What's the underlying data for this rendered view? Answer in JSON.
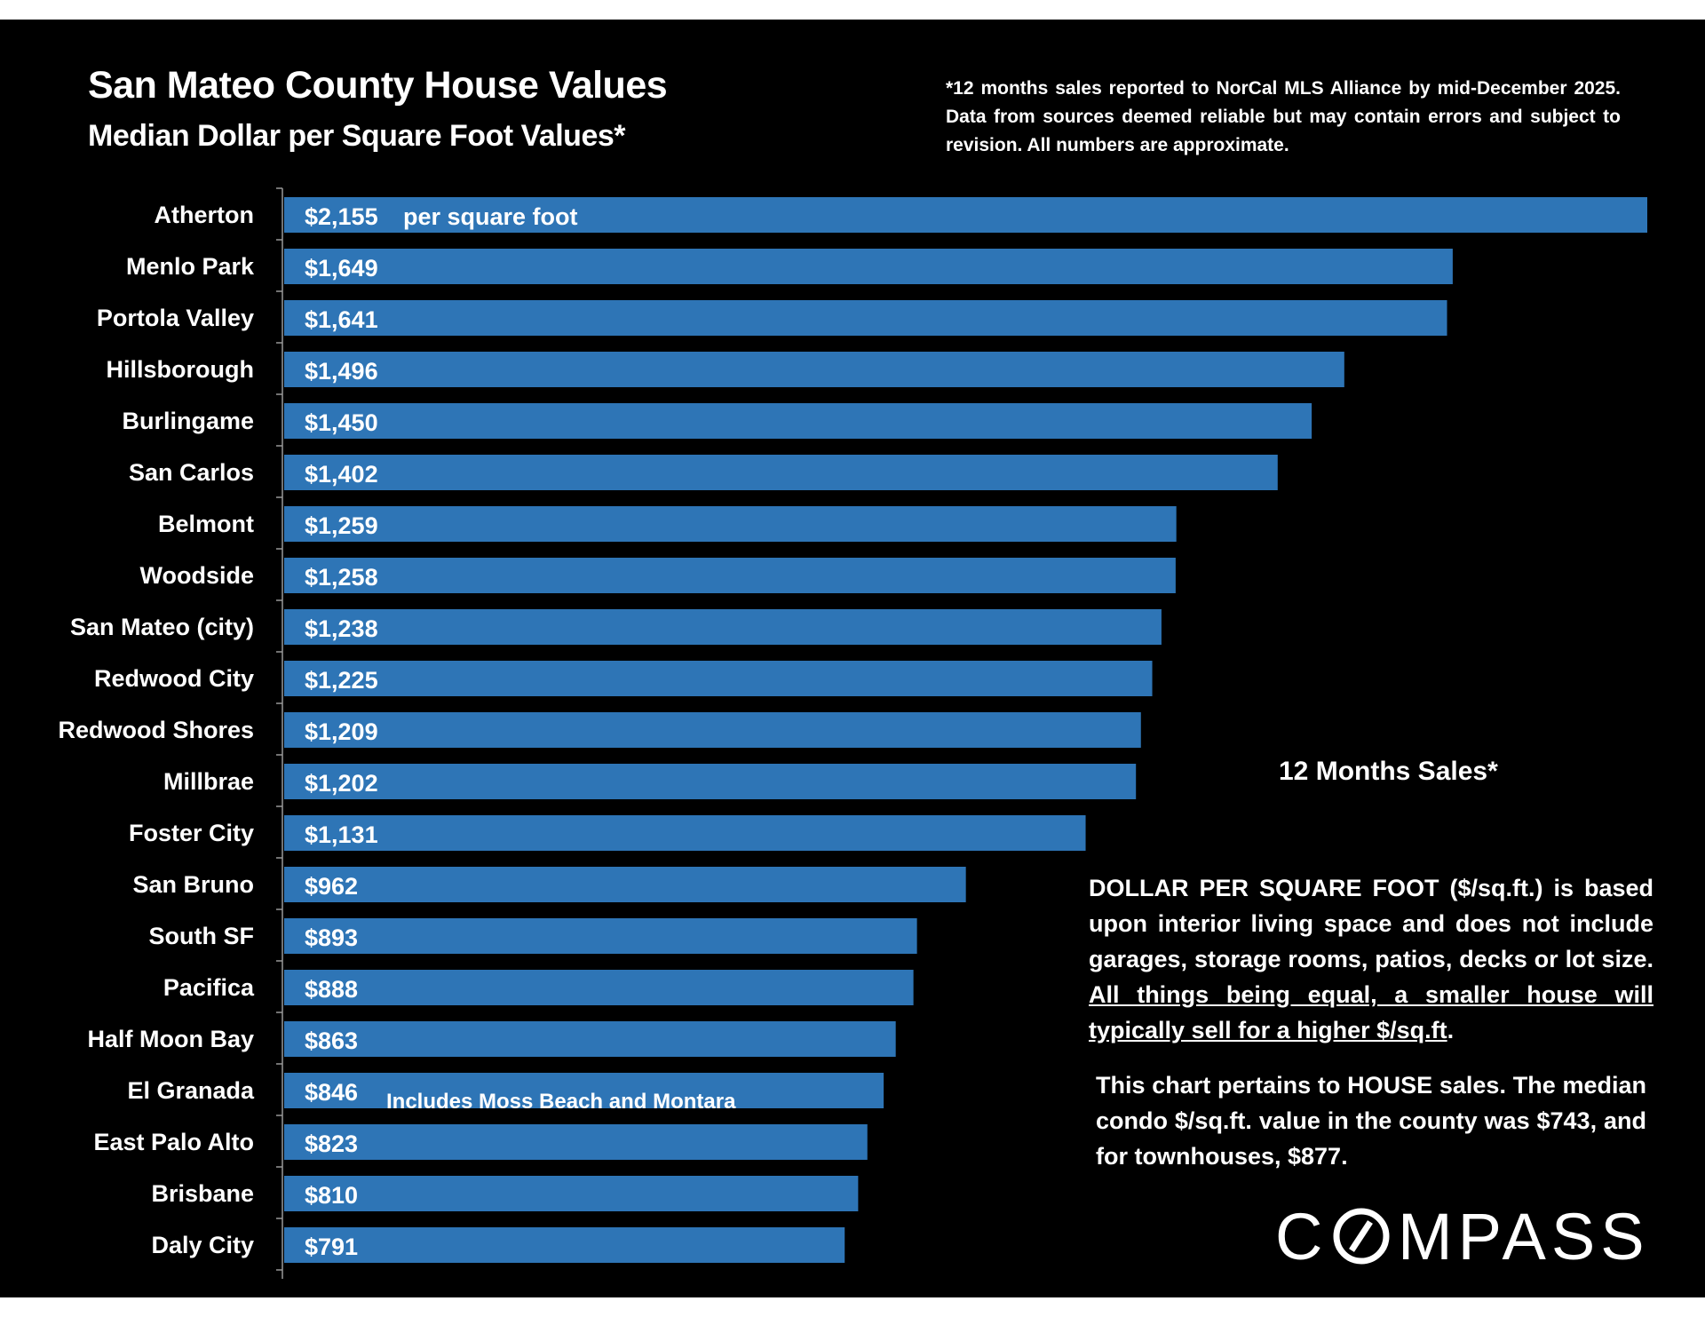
{
  "header": {
    "title": "San Mateo County House Values",
    "subtitle": "Median Dollar per Square Foot Values*",
    "footnote": "*12 months sales reported to NorCal MLS Alliance by mid-December 2025. Data from sources deemed reliable but may contain errors and subject to revision. All numbers are approximate."
  },
  "chart_data": {
    "type": "bar",
    "orientation": "horizontal",
    "title": "San Mateo County House Values",
    "subtitle": "Median Dollar per Square Foot Values*",
    "xlabel": "",
    "ylabel": "",
    "grid": false,
    "unit": "$ per square foot",
    "categories": [
      "Atherton",
      "Menlo Park",
      "Portola Valley",
      "Hillsborough",
      "Burlingame",
      "San Carlos",
      "Belmont",
      "Woodside",
      "San Mateo (city)",
      "Redwood City",
      "Redwood Shores",
      "Millbrae",
      "Foster City",
      "San Bruno",
      "South SF",
      "Pacifica",
      "Half Moon Bay",
      "El Granada",
      "East Palo Alto",
      "Brisbane",
      "Daly City"
    ],
    "values": [
      2155,
      1649,
      1641,
      1496,
      1450,
      1402,
      1259,
      1258,
      1238,
      1225,
      1209,
      1202,
      1131,
      962,
      893,
      888,
      863,
      846,
      823,
      810,
      791
    ],
    "labels": [
      "$2,155",
      "$1,649",
      "$1,641",
      "$1,496",
      "$1,450",
      "$1,402",
      "$1,259",
      "$1,258",
      "$1,238",
      "$1,225",
      "$1,209",
      "$1,202",
      "$1,131",
      "$962",
      "$893",
      "$888",
      "$863",
      "$846",
      "$823",
      "$810",
      "$791"
    ],
    "annotations": [
      {
        "category": "Atherton",
        "text": "per square foot"
      },
      {
        "category": "El Granada",
        "text": "Includes Moss Beach and Montara"
      }
    ],
    "bar_color": "#2e75b6",
    "xlim": [
      0,
      2155
    ]
  },
  "side": {
    "sales_title": "12 Months Sales*",
    "para1_plain": "DOLLAR PER SQUARE FOOT ($/sq.ft.) is based upon interior living space and does not include garages, storage rooms, patios, decks or lot size. ",
    "para1_underlined": "All things being equal, a smaller house will typically  sell for a higher $/sq.ft",
    "para1_end": ".",
    "para2": "This chart pertains to HOUSE sales. The median condo $/sq.ft. value in the county was $743, and for townhouses, $877."
  },
  "logo": {
    "text": "COMPASS"
  },
  "colors": {
    "background": "#000000",
    "bar": "#2e75b6",
    "text": "#ffffff"
  }
}
